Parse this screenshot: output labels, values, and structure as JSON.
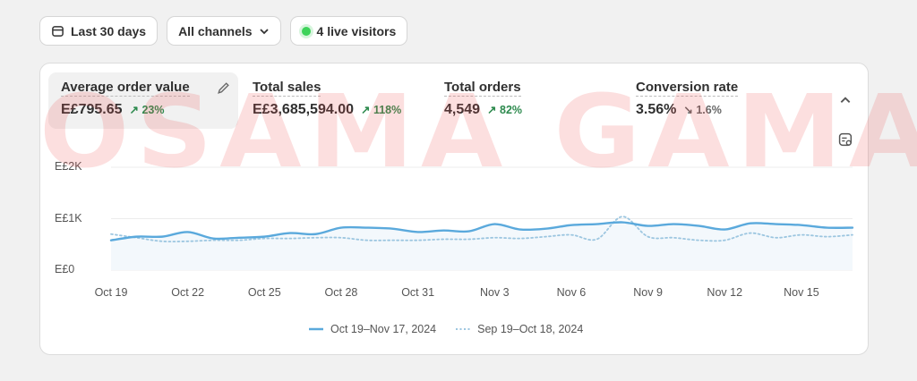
{
  "toolbar": {
    "date_range": "Last 30 days",
    "channels": "All channels",
    "live_visitors": "4 live visitors"
  },
  "metrics": [
    {
      "label": "Average order value",
      "value": "E£795.65",
      "change": "23%",
      "direction": "up"
    },
    {
      "label": "Total sales",
      "value": "E£3,685,594.00",
      "change": "118%",
      "direction": "up"
    },
    {
      "label": "Total orders",
      "value": "4,549",
      "change": "82%",
      "direction": "up"
    },
    {
      "label": "Conversion rate",
      "value": "3.56%",
      "change": "1.6%",
      "direction": "down"
    }
  ],
  "watermark": "OSAMA GAMAL",
  "colors": {
    "current": "#5aa9dc",
    "previous": "#9cc6e0",
    "up": "#2d8a4e",
    "live": "#3ed35a"
  },
  "chart_data": {
    "type": "line",
    "ylim": [
      0,
      2000
    ],
    "yticks": [
      {
        "v": 2000,
        "label": "E£2K"
      },
      {
        "v": 1000,
        "label": "E£1K"
      },
      {
        "v": 0,
        "label": "E£0"
      }
    ],
    "xticks": [
      {
        "i": 0,
        "label": "Oct 19"
      },
      {
        "i": 3,
        "label": "Oct 22"
      },
      {
        "i": 6,
        "label": "Oct 25"
      },
      {
        "i": 9,
        "label": "Oct 28"
      },
      {
        "i": 12,
        "label": "Oct 31"
      },
      {
        "i": 15,
        "label": "Nov 3"
      },
      {
        "i": 18,
        "label": "Nov 6"
      },
      {
        "i": 21,
        "label": "Nov 9"
      },
      {
        "i": 24,
        "label": "Nov 12"
      },
      {
        "i": 27,
        "label": "Nov 15"
      }
    ],
    "series": [
      {
        "name": "Oct 19–Nov 17, 2024",
        "style": "solid",
        "values": [
          580,
          650,
          650,
          740,
          615,
          630,
          650,
          720,
          700,
          825,
          825,
          805,
          740,
          770,
          755,
          895,
          790,
          805,
          875,
          895,
          930,
          860,
          895,
          860,
          790,
          910,
          895,
          875,
          825,
          825
        ]
      },
      {
        "name": "Sep 19–Oct 18, 2024",
        "style": "dotted",
        "values": [
          700,
          630,
          560,
          560,
          580,
          580,
          615,
          615,
          630,
          630,
          580,
          580,
          580,
          600,
          600,
          630,
          615,
          650,
          685,
          600,
          1040,
          650,
          630,
          580,
          580,
          720,
          630,
          685,
          650,
          685
        ]
      }
    ]
  }
}
